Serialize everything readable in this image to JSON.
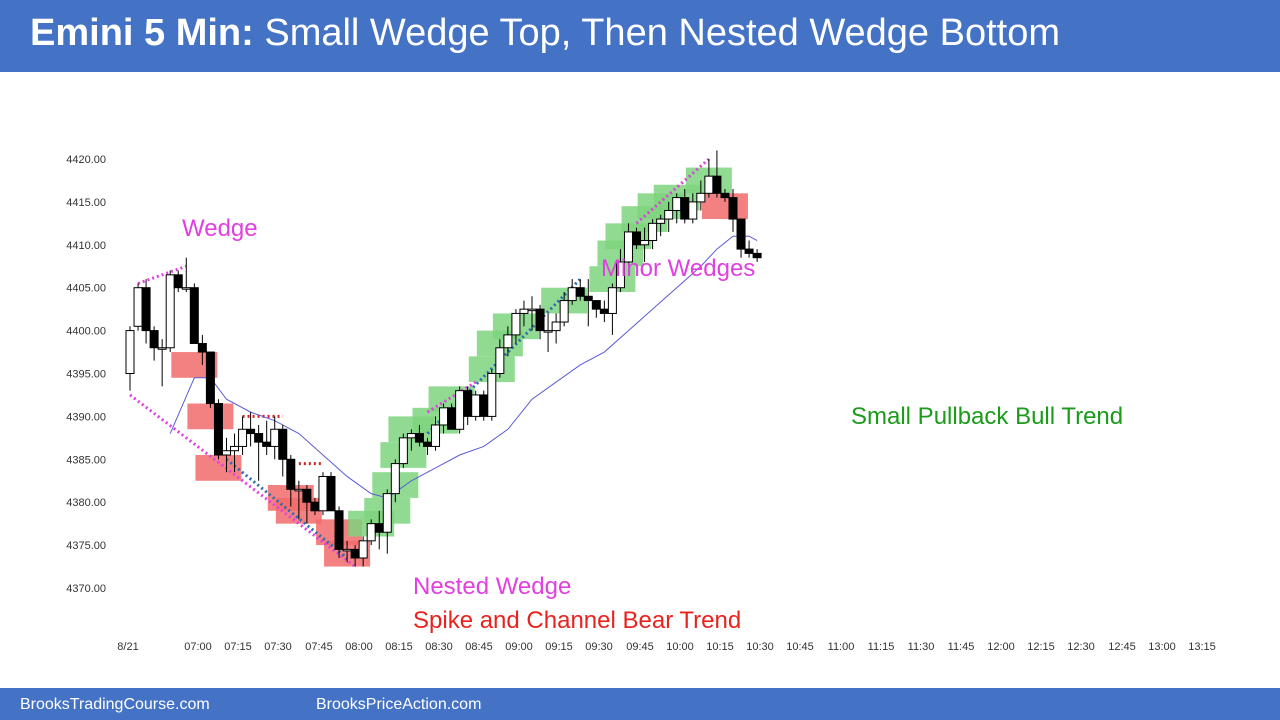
{
  "header": {
    "title_bold": "Emini 5 Min:",
    "title_rest": "Small Wedge Top, Then Nested Wedge Bottom"
  },
  "footer": {
    "left_link": "BrooksTradingCourse.com",
    "right_link": "BrooksPriceAction.com"
  },
  "colors": {
    "header_bg": "#4472c4",
    "bull_highlight": "#7ed37e",
    "bear_highlight": "#f26b6b",
    "moving_average": "#5b5bd6",
    "wedge_annotation": "#e040e0",
    "bear_trend_text": "#e8231e",
    "bull_trend_text": "#1a9b1a",
    "minor_wedge_line": "#2b6cb0",
    "resistance_line": "#d62020"
  },
  "chart_data": {
    "type": "candlestick",
    "title": "Emini 5 Min: Small Wedge Top, Then Nested Wedge Bottom",
    "date": "8/21",
    "ylim": [
      4367,
      4421
    ],
    "y_ticks": [
      "4370.00",
      "4375.00",
      "4380.00",
      "4385.00",
      "4390.00",
      "4395.00",
      "4400.00",
      "4405.00",
      "4410.00",
      "4415.00",
      "4420.00"
    ],
    "x_tick_labels": [
      "8/21",
      "07:00",
      "07:15",
      "07:30",
      "07:45",
      "08:00",
      "08:15",
      "08:30",
      "08:45",
      "09:00",
      "09:15",
      "09:30",
      "09:45",
      "10:00",
      "10:15",
      "10:30",
      "10:45",
      "11:00",
      "11:15",
      "11:30",
      "11:45",
      "12:00",
      "12:15",
      "12:30",
      "12:45",
      "13:00",
      "13:15"
    ],
    "bars": [
      {
        "o": 4395.0,
        "h": 4400.5,
        "l": 4393.0,
        "c": 4400.0
      },
      {
        "o": 4400.5,
        "h": 4405.5,
        "l": 4400.0,
        "c": 4405.0
      },
      {
        "o": 4405.0,
        "h": 4406.0,
        "l": 4398.5,
        "c": 4400.0
      },
      {
        "o": 4400.0,
        "h": 4400.5,
        "l": 4396.5,
        "c": 4398.0
      },
      {
        "o": 4398.0,
        "h": 4399.0,
        "l": 4393.5,
        "c": 4398.0
      },
      {
        "o": 4398.0,
        "h": 4407.0,
        "l": 4397.5,
        "c": 4406.5
      },
      {
        "o": 4406.5,
        "h": 4407.0,
        "l": 4404.5,
        "c": 4405.0
      },
      {
        "o": 4405.0,
        "h": 4408.5,
        "l": 4404.5,
        "c": 4405.0
      },
      {
        "o": 4405.0,
        "h": 4405.5,
        "l": 4398.5,
        "c": 4398.5
      },
      {
        "o": 4398.5,
        "h": 4399.5,
        "l": 4396.0,
        "c": 4397.5
      },
      {
        "o": 4397.5,
        "h": 4397.5,
        "l": 4391.0,
        "c": 4391.5
      },
      {
        "o": 4391.5,
        "h": 4392.0,
        "l": 4385.0,
        "c": 4385.5
      },
      {
        "o": 4385.5,
        "h": 4387.5,
        "l": 4383.5,
        "c": 4386.0
      },
      {
        "o": 4386.0,
        "h": 4388.0,
        "l": 4383.5,
        "c": 4386.5
      },
      {
        "o": 4386.5,
        "h": 4390.0,
        "l": 4385.5,
        "c": 4388.5
      },
      {
        "o": 4388.5,
        "h": 4390.5,
        "l": 4386.5,
        "c": 4388.0
      },
      {
        "o": 4388.0,
        "h": 4389.0,
        "l": 4382.5,
        "c": 4387.0
      },
      {
        "o": 4387.0,
        "h": 4389.5,
        "l": 4385.5,
        "c": 4386.5
      },
      {
        "o": 4386.5,
        "h": 4390.0,
        "l": 4385.0,
        "c": 4388.5
      },
      {
        "o": 4388.5,
        "h": 4389.0,
        "l": 4383.0,
        "c": 4385.0
      },
      {
        "o": 4385.0,
        "h": 4385.5,
        "l": 4379.5,
        "c": 4381.5
      },
      {
        "o": 4381.5,
        "h": 4382.5,
        "l": 4378.0,
        "c": 4381.5
      },
      {
        "o": 4381.5,
        "h": 4382.0,
        "l": 4377.5,
        "c": 4380.0
      },
      {
        "o": 4380.0,
        "h": 4380.5,
        "l": 4378.5,
        "c": 4379.0
      },
      {
        "o": 4379.0,
        "h": 4383.5,
        "l": 4378.5,
        "c": 4383.0
      },
      {
        "o": 4383.0,
        "h": 4383.5,
        "l": 4379.0,
        "c": 4379.0
      },
      {
        "o": 4379.0,
        "h": 4379.5,
        "l": 4373.5,
        "c": 4374.5
      },
      {
        "o": 4374.5,
        "h": 4375.5,
        "l": 4373.0,
        "c": 4374.5
      },
      {
        "o": 4374.5,
        "h": 4375.0,
        "l": 4372.5,
        "c": 4373.5
      },
      {
        "o": 4373.5,
        "h": 4376.0,
        "l": 4372.5,
        "c": 4375.5
      },
      {
        "o": 4375.5,
        "h": 4378.0,
        "l": 4375.0,
        "c": 4377.5
      },
      {
        "o": 4377.5,
        "h": 4379.0,
        "l": 4374.5,
        "c": 4376.5
      },
      {
        "o": 4376.5,
        "h": 4381.5,
        "l": 4374.0,
        "c": 4381.0
      },
      {
        "o": 4381.0,
        "h": 4385.0,
        "l": 4380.0,
        "c": 4384.5
      },
      {
        "o": 4384.5,
        "h": 4388.0,
        "l": 4384.0,
        "c": 4387.5
      },
      {
        "o": 4387.5,
        "h": 4388.5,
        "l": 4386.0,
        "c": 4388.0
      },
      {
        "o": 4388.0,
        "h": 4389.0,
        "l": 4386.5,
        "c": 4387.0
      },
      {
        "o": 4387.0,
        "h": 4387.5,
        "l": 4385.5,
        "c": 4386.5
      },
      {
        "o": 4386.5,
        "h": 4390.0,
        "l": 4386.0,
        "c": 4389.0
      },
      {
        "o": 4389.0,
        "h": 4391.5,
        "l": 4388.0,
        "c": 4391.0
      },
      {
        "o": 4391.0,
        "h": 4391.5,
        "l": 4388.5,
        "c": 4388.5
      },
      {
        "o": 4388.5,
        "h": 4393.5,
        "l": 4388.0,
        "c": 4393.0
      },
      {
        "o": 4393.0,
        "h": 4393.5,
        "l": 4389.0,
        "c": 4390.0
      },
      {
        "o": 4390.0,
        "h": 4393.0,
        "l": 4389.5,
        "c": 4392.5
      },
      {
        "o": 4392.5,
        "h": 4393.0,
        "l": 4389.5,
        "c": 4390.0
      },
      {
        "o": 4390.0,
        "h": 4395.5,
        "l": 4389.5,
        "c": 4395.0
      },
      {
        "o": 4395.0,
        "h": 4399.0,
        "l": 4394.5,
        "c": 4398.0
      },
      {
        "o": 4398.0,
        "h": 4400.5,
        "l": 4397.0,
        "c": 4399.5
      },
      {
        "o": 4399.5,
        "h": 4402.5,
        "l": 4398.5,
        "c": 4402.0
      },
      {
        "o": 4402.0,
        "h": 4403.5,
        "l": 4400.5,
        "c": 4402.5
      },
      {
        "o": 4402.5,
        "h": 4404.0,
        "l": 4400.0,
        "c": 4402.5
      },
      {
        "o": 4402.5,
        "h": 4403.0,
        "l": 4399.0,
        "c": 4400.0
      },
      {
        "o": 4400.0,
        "h": 4402.0,
        "l": 4397.5,
        "c": 4400.0
      },
      {
        "o": 4400.0,
        "h": 4402.0,
        "l": 4398.5,
        "c": 4401.0
      },
      {
        "o": 4401.0,
        "h": 4404.5,
        "l": 4400.5,
        "c": 4403.5
      },
      {
        "o": 4403.5,
        "h": 4406.0,
        "l": 4403.0,
        "c": 4405.0
      },
      {
        "o": 4405.0,
        "h": 4406.0,
        "l": 4403.5,
        "c": 4404.0
      },
      {
        "o": 4404.0,
        "h": 4406.0,
        "l": 4400.5,
        "c": 4403.5
      },
      {
        "o": 4403.5,
        "h": 4403.5,
        "l": 4401.5,
        "c": 4402.5
      },
      {
        "o": 4402.5,
        "h": 4403.5,
        "l": 4401.0,
        "c": 4402.0
      },
      {
        "o": 4402.0,
        "h": 4405.5,
        "l": 4399.5,
        "c": 4405.0
      },
      {
        "o": 4405.0,
        "h": 4409.5,
        "l": 4404.5,
        "c": 4408.0
      },
      {
        "o": 4408.0,
        "h": 4412.5,
        "l": 4407.5,
        "c": 4411.5
      },
      {
        "o": 4411.5,
        "h": 4412.0,
        "l": 4409.5,
        "c": 4410.0
      },
      {
        "o": 4410.0,
        "h": 4412.0,
        "l": 4408.0,
        "c": 4410.5
      },
      {
        "o": 4410.5,
        "h": 4413.0,
        "l": 4409.5,
        "c": 4412.5
      },
      {
        "o": 4412.5,
        "h": 4413.5,
        "l": 4411.0,
        "c": 4413.0
      },
      {
        "o": 4413.0,
        "h": 4415.0,
        "l": 4411.5,
        "c": 4414.0
      },
      {
        "o": 4414.0,
        "h": 4416.0,
        "l": 4412.5,
        "c": 4415.5
      },
      {
        "o": 4415.5,
        "h": 4416.5,
        "l": 4412.5,
        "c": 4413.0
      },
      {
        "o": 4413.0,
        "h": 4416.0,
        "l": 4412.5,
        "c": 4415.0
      },
      {
        "o": 4415.0,
        "h": 4417.5,
        "l": 4414.0,
        "c": 4416.0
      },
      {
        "o": 4416.0,
        "h": 4420.0,
        "l": 4415.5,
        "c": 4418.0
      },
      {
        "o": 4418.0,
        "h": 4421.0,
        "l": 4415.5,
        "c": 4416.0
      },
      {
        "o": 4416.0,
        "h": 4416.5,
        "l": 4415.0,
        "c": 4415.5
      },
      {
        "o": 4415.5,
        "h": 4416.5,
        "l": 4411.5,
        "c": 4413.0
      },
      {
        "o": 4413.0,
        "h": 4413.0,
        "l": 4408.5,
        "c": 4409.5
      },
      {
        "o": 4409.5,
        "h": 4410.5,
        "l": 4408.5,
        "c": 4409.0
      },
      {
        "o": 4409.0,
        "h": 4409.5,
        "l": 4408.0,
        "c": 4408.5
      }
    ],
    "moving_average": [
      [
        0,
        null
      ],
      [
        5,
        4388.0
      ],
      [
        8,
        4394.5
      ],
      [
        10,
        4394.5
      ],
      [
        12,
        4392.0
      ],
      [
        15,
        4390.5
      ],
      [
        18,
        4389.5
      ],
      [
        21,
        4388.0
      ],
      [
        24,
        4385.5
      ],
      [
        27,
        4383.0
      ],
      [
        30,
        4381.0
      ],
      [
        32,
        4380.5
      ],
      [
        35,
        4382.5
      ],
      [
        38,
        4384.0
      ],
      [
        41,
        4385.5
      ],
      [
        44,
        4386.5
      ],
      [
        47,
        4388.5
      ],
      [
        50,
        4392.0
      ],
      [
        53,
        4394.0
      ],
      [
        56,
        4396.0
      ],
      [
        59,
        4397.5
      ],
      [
        62,
        4400.0
      ],
      [
        65,
        4402.5
      ],
      [
        68,
        4405.0
      ],
      [
        71,
        4407.5
      ],
      [
        73,
        4409.5
      ],
      [
        75,
        4411.0
      ],
      [
        77,
        4411.0
      ],
      [
        78,
        4410.5
      ]
    ],
    "highlights": [
      {
        "bar": 8,
        "low": 4394.5,
        "high": 4397.5,
        "kind": "bear"
      },
      {
        "bar": 10,
        "low": 4388.5,
        "high": 4391.5,
        "kind": "bear"
      },
      {
        "bar": 11,
        "low": 4382.5,
        "high": 4385.5,
        "kind": "bear"
      },
      {
        "bar": 20,
        "low": 4379.0,
        "high": 4382.0,
        "kind": "bear"
      },
      {
        "bar": 21,
        "low": 4377.5,
        "high": 4380.5,
        "kind": "bear"
      },
      {
        "bar": 26,
        "low": 4375.0,
        "high": 4378.0,
        "kind": "bear"
      },
      {
        "bar": 27,
        "low": 4372.5,
        "high": 4375.5,
        "kind": "bear"
      },
      {
        "bar": 30,
        "low": 4376.0,
        "high": 4379.0,
        "kind": "bull"
      },
      {
        "bar": 32,
        "low": 4377.5,
        "high": 4380.5,
        "kind": "bull"
      },
      {
        "bar": 33,
        "low": 4380.5,
        "high": 4383.5,
        "kind": "bull"
      },
      {
        "bar": 34,
        "low": 4384.0,
        "high": 4387.0,
        "kind": "bull"
      },
      {
        "bar": 35,
        "low": 4387.0,
        "high": 4390.0,
        "kind": "bull"
      },
      {
        "bar": 38,
        "low": 4388.0,
        "high": 4391.0,
        "kind": "bull"
      },
      {
        "bar": 40,
        "low": 4390.5,
        "high": 4393.5,
        "kind": "bull"
      },
      {
        "bar": 45,
        "low": 4394.0,
        "high": 4397.0,
        "kind": "bull"
      },
      {
        "bar": 46,
        "low": 4397.0,
        "high": 4400.0,
        "kind": "bull"
      },
      {
        "bar": 48,
        "low": 4399.0,
        "high": 4402.0,
        "kind": "bull"
      },
      {
        "bar": 54,
        "low": 4402.0,
        "high": 4405.0,
        "kind": "bull"
      },
      {
        "bar": 60,
        "low": 4404.5,
        "high": 4407.5,
        "kind": "bull"
      },
      {
        "bar": 61,
        "low": 4407.5,
        "high": 4410.5,
        "kind": "bull"
      },
      {
        "bar": 62,
        "low": 4409.5,
        "high": 4412.5,
        "kind": "bull"
      },
      {
        "bar": 64,
        "low": 4411.5,
        "high": 4414.5,
        "kind": "bull"
      },
      {
        "bar": 66,
        "low": 4413.0,
        "high": 4416.0,
        "kind": "bull"
      },
      {
        "bar": 68,
        "low": 4414.0,
        "high": 4417.0,
        "kind": "bull"
      },
      {
        "bar": 72,
        "low": 4416.0,
        "high": 4419.0,
        "kind": "bull"
      },
      {
        "bar": 74,
        "low": 4413.0,
        "high": 4416.0,
        "kind": "bear"
      }
    ],
    "trendlines": [
      {
        "from": [
          1,
          4405.5
        ],
        "to": [
          7,
          4407.5
        ],
        "color": "wedge",
        "style": "dotted"
      },
      {
        "from": [
          0,
          4392.5
        ],
        "to": [
          28,
          4372.5
        ],
        "color": "wedge",
        "style": "dotted"
      },
      {
        "from": [
          12,
          4385.0
        ],
        "to": [
          27,
          4373.5
        ],
        "color": "minor",
        "style": "dotted"
      },
      {
        "from": [
          37,
          4388.0
        ],
        "to": [
          56,
          4406.0
        ],
        "color": "minor",
        "style": "dotted"
      },
      {
        "from": [
          37,
          4390.5
        ],
        "to": [
          43,
          4394.0
        ],
        "color": "wedge",
        "style": "dotted"
      },
      {
        "from": [
          63,
          4412.5
        ],
        "to": [
          72,
          4420.0
        ],
        "color": "wedge",
        "style": "dotted"
      },
      {
        "from": [
          14,
          4390.0
        ],
        "to": [
          19,
          4390.0
        ],
        "color": "resistance",
        "style": "dotted"
      },
      {
        "from": [
          21,
          4384.5
        ],
        "to": [
          24,
          4384.5
        ],
        "color": "resistance",
        "style": "dotted"
      }
    ],
    "annotations": [
      {
        "text": "Wedge",
        "color": "wedge"
      },
      {
        "text": "Minor Wedges",
        "color": "wedge"
      },
      {
        "text": "Small Pullback Bull Trend",
        "color": "bull_trend"
      },
      {
        "text": "Nested Wedge",
        "color": "wedge"
      },
      {
        "text": "Spike and Channel Bear Trend",
        "color": "bear_trend"
      }
    ]
  }
}
